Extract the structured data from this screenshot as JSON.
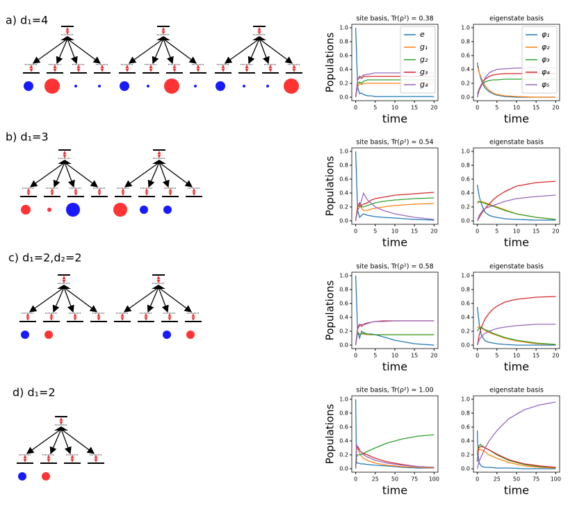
{
  "diagrams": [
    {
      "label": "a) d₁=4"
    },
    {
      "label": "b) d₁=3"
    },
    {
      "label": "c) d₁=2,d₂=2"
    },
    {
      "label": "d) d₁=2"
    }
  ],
  "chart_data": [
    {
      "type": "line",
      "title": "site basis, Tr(ρ²) = 0.38",
      "xlabel": "time",
      "ylabel": "Populations",
      "legend": "upper right",
      "x": [
        0,
        0.5,
        1,
        1.5,
        2,
        3,
        4,
        5,
        7,
        10,
        15,
        20
      ],
      "xlim": [
        -1,
        21
      ],
      "xticks": [
        0,
        5,
        10,
        15,
        20
      ],
      "ylim": [
        -0.05,
        1.05
      ],
      "yticks": [
        {
          "value": 0,
          "label": "0.0"
        },
        {
          "value": 0.2,
          "label": "0.2"
        },
        {
          "value": 0.4,
          "label": "0.4"
        },
        {
          "value": 0.6,
          "label": "0.6"
        },
        {
          "value": 0.8,
          "label": "0.8"
        },
        {
          "value": 1,
          "label": "1.0"
        }
      ],
      "series": [
        {
          "name": "e",
          "color": "#1f77b4",
          "values": [
            1,
            0.15,
            0.05,
            0.06,
            0.04,
            0.02,
            0.02,
            0.01,
            0.01,
            0.01,
            0.01,
            0.01
          ]
        },
        {
          "name": "g₁",
          "color": "#ff7f0e",
          "values": [
            0,
            0.15,
            0.2,
            0.18,
            0.2,
            0.2,
            0.2,
            0.2,
            0.2,
            0.2,
            0.2,
            0.2
          ]
        },
        {
          "name": "g₂",
          "color": "#2ca02c",
          "values": [
            0,
            0.2,
            0.22,
            0.2,
            0.23,
            0.25,
            0.25,
            0.25,
            0.25,
            0.25,
            0.25,
            0.25
          ]
        },
        {
          "name": "g₃",
          "color": "#d62728",
          "values": [
            0,
            0.25,
            0.3,
            0.27,
            0.3,
            0.3,
            0.3,
            0.3,
            0.3,
            0.3,
            0.3,
            0.3
          ]
        },
        {
          "name": "g₄",
          "color": "#9467bd",
          "values": [
            0,
            0.25,
            0.28,
            0.3,
            0.32,
            0.33,
            0.34,
            0.35,
            0.35,
            0.35,
            0.35,
            0.35
          ]
        }
      ]
    },
    {
      "type": "line",
      "title": "eigenstate basis",
      "xlabel": "time",
      "legend": "upper right",
      "x": [
        0,
        0.5,
        1,
        1.5,
        2,
        3,
        4,
        5,
        7,
        10,
        15,
        20
      ],
      "xlim": [
        -1,
        21
      ],
      "xticks": [
        0,
        5,
        10,
        15,
        20
      ],
      "ylim": [
        -0.05,
        1.05
      ],
      "yticks": [
        {
          "value": 0,
          "label": "0.0"
        },
        {
          "value": 0.2,
          "label": "0.2"
        },
        {
          "value": 0.4,
          "label": "0.4"
        },
        {
          "value": 0.6,
          "label": "0.6"
        },
        {
          "value": 0.8,
          "label": "0.8"
        },
        {
          "value": 1,
          "label": "1.0"
        }
      ],
      "series": [
        {
          "name": "φ₁",
          "color": "#1f77b4",
          "values": [
            0.5,
            0.35,
            0.25,
            0.18,
            0.13,
            0.08,
            0.05,
            0.03,
            0.01,
            0,
            0,
            0
          ]
        },
        {
          "name": "φ₂",
          "color": "#ff7f0e",
          "values": [
            0.45,
            0.35,
            0.28,
            0.22,
            0.16,
            0.1,
            0.06,
            0.04,
            0.02,
            0.01,
            0,
            0
          ]
        },
        {
          "name": "φ₃",
          "color": "#2ca02c",
          "values": [
            0.05,
            0.12,
            0.17,
            0.2,
            0.22,
            0.24,
            0.25,
            0.25,
            0.26,
            0.26,
            0.26,
            0.26
          ]
        },
        {
          "name": "φ₄",
          "color": "#d62728",
          "values": [
            0,
            0.12,
            0.18,
            0.22,
            0.26,
            0.3,
            0.32,
            0.33,
            0.34,
            0.34,
            0.34,
            0.34
          ]
        },
        {
          "name": "φ₅",
          "color": "#9467bd",
          "values": [
            0,
            0.1,
            0.16,
            0.22,
            0.28,
            0.35,
            0.38,
            0.4,
            0.41,
            0.42,
            0.42,
            0.42
          ]
        }
      ]
    },
    {
      "type": "line",
      "title": "site basis, Tr(ρ²) = 0.54",
      "xlabel": "time",
      "ylabel": "Populations",
      "x": [
        0,
        0.5,
        1,
        1.5,
        2,
        3,
        4,
        5,
        7,
        10,
        15,
        20
      ],
      "xlim": [
        -1,
        21
      ],
      "xticks": [
        0,
        5,
        10,
        15,
        20
      ],
      "ylim": [
        -0.05,
        1.05
      ],
      "yticks": [
        {
          "value": 0,
          "label": "0.0"
        },
        {
          "value": 0.2,
          "label": "0.2"
        },
        {
          "value": 0.4,
          "label": "0.4"
        },
        {
          "value": 0.6,
          "label": "0.6"
        },
        {
          "value": 0.8,
          "label": "0.8"
        },
        {
          "value": 1,
          "label": "1.0"
        }
      ],
      "series": [
        {
          "color": "#1f77b4",
          "values": [
            1,
            0.15,
            0.05,
            0.08,
            0.1,
            0.08,
            0.07,
            0.06,
            0.05,
            0.04,
            0.02,
            0.01
          ]
        },
        {
          "color": "#ff7f0e",
          "values": [
            0,
            0.2,
            0.22,
            0.18,
            0.15,
            0.15,
            0.17,
            0.18,
            0.2,
            0.22,
            0.24,
            0.25
          ]
        },
        {
          "color": "#2ca02c",
          "values": [
            0,
            0.2,
            0.25,
            0.2,
            0.2,
            0.22,
            0.24,
            0.26,
            0.28,
            0.3,
            0.32,
            0.33
          ]
        },
        {
          "color": "#d62728",
          "values": [
            0,
            0.2,
            0.26,
            0.22,
            0.24,
            0.26,
            0.3,
            0.32,
            0.34,
            0.37,
            0.39,
            0.41
          ]
        },
        {
          "color": "#9467bd",
          "values": [
            0,
            0.15,
            0.2,
            0.3,
            0.4,
            0.3,
            0.25,
            0.2,
            0.15,
            0.1,
            0.05,
            0.02
          ]
        }
      ]
    },
    {
      "type": "line",
      "title": "eigenstate basis",
      "xlabel": "time",
      "x": [
        0,
        0.5,
        1,
        1.5,
        2,
        3,
        4,
        5,
        7,
        10,
        15,
        20
      ],
      "xlim": [
        -1,
        21
      ],
      "xticks": [
        0,
        5,
        10,
        15,
        20
      ],
      "ylim": [
        -0.05,
        1.05
      ],
      "yticks": [
        {
          "value": 0,
          "label": "0.0"
        },
        {
          "value": 0.2,
          "label": "0.2"
        },
        {
          "value": 0.4,
          "label": "0.4"
        },
        {
          "value": 0.6,
          "label": "0.6"
        },
        {
          "value": 0.8,
          "label": "0.8"
        },
        {
          "value": 1,
          "label": "1.0"
        }
      ],
      "series": [
        {
          "color": "#1f77b4",
          "values": [
            0.52,
            0.35,
            0.25,
            0.18,
            0.12,
            0.08,
            0.06,
            0.05,
            0.03,
            0.02,
            0.01,
            0.01
          ]
        },
        {
          "color": "#ff7f0e",
          "values": [
            0.25,
            0.28,
            0.28,
            0.27,
            0.26,
            0.24,
            0.22,
            0.2,
            0.16,
            0.1,
            0.05,
            0.02
          ]
        },
        {
          "color": "#2ca02c",
          "values": [
            0.28,
            0.27,
            0.27,
            0.26,
            0.25,
            0.23,
            0.21,
            0.19,
            0.15,
            0.1,
            0.05,
            0.02
          ]
        },
        {
          "color": "#d62728",
          "values": [
            0,
            0.05,
            0.1,
            0.14,
            0.18,
            0.24,
            0.3,
            0.35,
            0.42,
            0.5,
            0.55,
            0.57
          ]
        },
        {
          "color": "#9467bd",
          "values": [
            0,
            0.08,
            0.12,
            0.16,
            0.18,
            0.2,
            0.22,
            0.24,
            0.28,
            0.32,
            0.35,
            0.37
          ]
        }
      ]
    },
    {
      "type": "line",
      "title": "site basis, Tr(ρ²) = 0.58",
      "xlabel": "time",
      "ylabel": "Populations",
      "x": [
        0,
        0.5,
        1,
        1.5,
        2,
        3,
        4,
        5,
        7,
        10,
        15,
        20
      ],
      "xlim": [
        -1,
        21
      ],
      "xticks": [
        0,
        5,
        10,
        15,
        20
      ],
      "ylim": [
        -0.05,
        1.05
      ],
      "yticks": [
        {
          "value": 0,
          "label": "0.0"
        },
        {
          "value": 0.2,
          "label": "0.2"
        },
        {
          "value": 0.4,
          "label": "0.4"
        },
        {
          "value": 0.6,
          "label": "0.6"
        },
        {
          "value": 0.8,
          "label": "0.8"
        },
        {
          "value": 1,
          "label": "1.0"
        }
      ],
      "series": [
        {
          "color": "#1f77b4",
          "values": [
            1,
            0.2,
            0.1,
            0.2,
            0.18,
            0.16,
            0.16,
            0.15,
            0.12,
            0.07,
            0.02,
            0
          ]
        },
        {
          "color": "#ff7f0e",
          "values": [
            0,
            0.2,
            0.15,
            0.17,
            0.16,
            0.15,
            0.15,
            0.15,
            0.15,
            0.15,
            0.15,
            0.15
          ]
        },
        {
          "color": "#2ca02c",
          "values": [
            0,
            0.18,
            0.16,
            0.16,
            0.17,
            0.16,
            0.15,
            0.15,
            0.15,
            0.15,
            0.15,
            0.15
          ]
        },
        {
          "color": "#d62728",
          "values": [
            0,
            0.25,
            0.3,
            0.27,
            0.3,
            0.32,
            0.33,
            0.34,
            0.35,
            0.35,
            0.35,
            0.35
          ]
        },
        {
          "color": "#9467bd",
          "values": [
            0,
            0.23,
            0.28,
            0.3,
            0.29,
            0.31,
            0.33,
            0.34,
            0.34,
            0.35,
            0.35,
            0.35
          ]
        }
      ]
    },
    {
      "type": "line",
      "title": "eigenstate basis",
      "xlabel": "time",
      "x": [
        0,
        0.5,
        1,
        1.5,
        2,
        3,
        4,
        5,
        7,
        10,
        15,
        20
      ],
      "xlim": [
        -1,
        21
      ],
      "xticks": [
        0,
        5,
        10,
        15,
        20
      ],
      "ylim": [
        -0.05,
        1.05
      ],
      "yticks": [
        {
          "value": 0,
          "label": "0.0"
        },
        {
          "value": 0.2,
          "label": "0.2"
        },
        {
          "value": 0.4,
          "label": "0.4"
        },
        {
          "value": 0.6,
          "label": "0.6"
        },
        {
          "value": 0.8,
          "label": "0.8"
        },
        {
          "value": 1,
          "label": "1.0"
        }
      ],
      "series": [
        {
          "color": "#1f77b4",
          "values": [
            0.55,
            0.3,
            0.15,
            0.1,
            0.06,
            0.04,
            0.03,
            0.02,
            0.01,
            0,
            0,
            0
          ]
        },
        {
          "color": "#ff7f0e",
          "values": [
            0.25,
            0.27,
            0.25,
            0.23,
            0.21,
            0.18,
            0.16,
            0.14,
            0.1,
            0.06,
            0.02,
            0.01
          ]
        },
        {
          "color": "#2ca02c",
          "values": [
            0.2,
            0.25,
            0.26,
            0.24,
            0.22,
            0.2,
            0.17,
            0.15,
            0.11,
            0.07,
            0.03,
            0.01
          ]
        },
        {
          "color": "#d62728",
          "values": [
            0,
            0.15,
            0.25,
            0.32,
            0.38,
            0.46,
            0.52,
            0.56,
            0.62,
            0.66,
            0.69,
            0.7
          ]
        },
        {
          "color": "#9467bd",
          "values": [
            0,
            0.08,
            0.12,
            0.15,
            0.17,
            0.2,
            0.22,
            0.24,
            0.26,
            0.28,
            0.3,
            0.3
          ]
        }
      ]
    },
    {
      "type": "line",
      "title": "site basis, Tr(ρ²) = 1.00",
      "xlabel": "time",
      "ylabel": "Populations",
      "x": [
        0,
        1,
        2,
        4,
        6,
        10,
        15,
        25,
        40,
        60,
        80,
        100
      ],
      "xlim": [
        -5,
        105
      ],
      "xticks": [
        0,
        25,
        50,
        75,
        100
      ],
      "ylim": [
        -0.05,
        1.05
      ],
      "yticks": [
        {
          "value": 0,
          "label": "0.0"
        },
        {
          "value": 0.2,
          "label": "0.2"
        },
        {
          "value": 0.4,
          "label": "0.4"
        },
        {
          "value": 0.6,
          "label": "0.6"
        },
        {
          "value": 0.8,
          "label": "0.8"
        },
        {
          "value": 1,
          "label": "1.0"
        }
      ],
      "series": [
        {
          "color": "#1f77b4",
          "values": [
            1,
            0.1,
            0.08,
            0.08,
            0.07,
            0.07,
            0.06,
            0.05,
            0.04,
            0.02,
            0.01,
            0.01
          ]
        },
        {
          "color": "#ff7f0e",
          "values": [
            0,
            0.3,
            0.3,
            0.25,
            0.2,
            0.15,
            0.12,
            0.08,
            0.05,
            0.03,
            0.02,
            0.01
          ]
        },
        {
          "color": "#2ca02c",
          "values": [
            0,
            0.15,
            0.2,
            0.2,
            0.2,
            0.22,
            0.25,
            0.3,
            0.37,
            0.43,
            0.47,
            0.49
          ]
        },
        {
          "color": "#d62728",
          "values": [
            0,
            0.33,
            0.32,
            0.28,
            0.25,
            0.22,
            0.2,
            0.15,
            0.1,
            0.06,
            0.03,
            0.02
          ]
        },
        {
          "color": "#9467bd",
          "values": [
            0,
            0.35,
            0.33,
            0.3,
            0.25,
            0.2,
            0.17,
            0.12,
            0.08,
            0.05,
            0.03,
            0.02
          ]
        }
      ]
    },
    {
      "type": "line",
      "title": "eigenstate basis",
      "xlabel": "time",
      "x": [
        0,
        1,
        2,
        4,
        6,
        10,
        15,
        25,
        40,
        60,
        80,
        100
      ],
      "xlim": [
        -5,
        105
      ],
      "xticks": [
        0,
        25,
        50,
        75,
        100
      ],
      "ylim": [
        -0.05,
        1.05
      ],
      "yticks": [
        {
          "value": 0,
          "label": "0.0"
        },
        {
          "value": 0.2,
          "label": "0.2"
        },
        {
          "value": 0.4,
          "label": "0.4"
        },
        {
          "value": 0.6,
          "label": "0.6"
        },
        {
          "value": 0.8,
          "label": "0.8"
        },
        {
          "value": 1,
          "label": "1.0"
        }
      ],
      "series": [
        {
          "color": "#1f77b4",
          "values": [
            0.55,
            0.2,
            0.1,
            0.05,
            0.03,
            0.02,
            0.02,
            0.01,
            0.01,
            0,
            0,
            0
          ]
        },
        {
          "color": "#ff7f0e",
          "values": [
            0.2,
            0.25,
            0.27,
            0.28,
            0.27,
            0.24,
            0.2,
            0.15,
            0.09,
            0.04,
            0.02,
            0.01
          ]
        },
        {
          "color": "#2ca02c",
          "values": [
            0.2,
            0.3,
            0.33,
            0.35,
            0.33,
            0.3,
            0.27,
            0.2,
            0.12,
            0.06,
            0.03,
            0.02
          ]
        },
        {
          "color": "#d62728",
          "values": [
            0.1,
            0.25,
            0.3,
            0.32,
            0.32,
            0.3,
            0.27,
            0.21,
            0.13,
            0.07,
            0.04,
            0.02
          ]
        },
        {
          "color": "#9467bd",
          "values": [
            0,
            0.05,
            0.1,
            0.15,
            0.2,
            0.3,
            0.4,
            0.55,
            0.72,
            0.85,
            0.92,
            0.96
          ]
        }
      ]
    }
  ]
}
